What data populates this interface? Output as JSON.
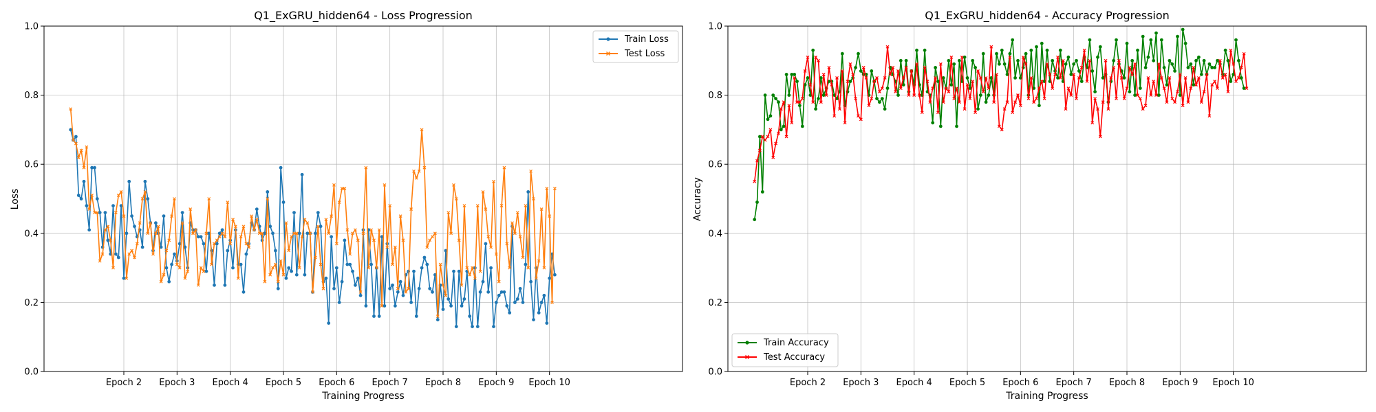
{
  "chart_data": [
    {
      "type": "line",
      "title": "Q1_ExGRU_hidden64 - Loss Progression",
      "xlabel": "Training Progress",
      "ylabel": "Loss",
      "ylim": [
        0,
        1.0
      ],
      "yticks": [
        "0.0",
        "0.2",
        "0.4",
        "0.6",
        "0.8",
        "1.0"
      ],
      "xlim": [
        -10,
        230
      ],
      "xticks": [
        {
          "x": 20,
          "label": "Epoch 2"
        },
        {
          "x": 40,
          "label": "Epoch 3"
        },
        {
          "x": 60,
          "label": "Epoch 4"
        },
        {
          "x": 80,
          "label": "Epoch 5"
        },
        {
          "x": 100,
          "label": "Epoch 6"
        },
        {
          "x": 120,
          "label": "Epoch 7"
        },
        {
          "x": 140,
          "label": "Epoch 8"
        },
        {
          "x": 160,
          "label": "Epoch 9"
        },
        {
          "x": 180,
          "label": "Epoch 10"
        }
      ],
      "grid": true,
      "legend_position": "top-right",
      "series": [
        {
          "name": "Train Loss",
          "color": "#1f77b4",
          "marker": "circle",
          "values": [
            0.7,
            0.67,
            0.68,
            0.51,
            0.5,
            0.55,
            0.48,
            0.41,
            0.59,
            0.59,
            0.5,
            0.46,
            0.36,
            0.46,
            0.38,
            0.34,
            0.48,
            0.34,
            0.33,
            0.48,
            0.27,
            0.4,
            0.55,
            0.45,
            0.42,
            0.39,
            0.41,
            0.36,
            0.55,
            0.5,
            0.43,
            0.35,
            0.43,
            0.4,
            0.36,
            0.45,
            0.3,
            0.26,
            0.31,
            0.34,
            0.32,
            0.37,
            0.46,
            0.36,
            0.3,
            0.43,
            0.41,
            0.41,
            0.39,
            0.39,
            0.37,
            0.29,
            0.4,
            0.35,
            0.25,
            0.37,
            0.4,
            0.41,
            0.25,
            0.35,
            0.38,
            0.3,
            0.41,
            0.31,
            0.31,
            0.23,
            0.34,
            0.37,
            0.43,
            0.41,
            0.47,
            0.42,
            0.38,
            0.4,
            0.52,
            0.42,
            0.4,
            0.35,
            0.24,
            0.59,
            0.49,
            0.27,
            0.3,
            0.29,
            0.46,
            0.28,
            0.4,
            0.57,
            0.28,
            0.4,
            0.4,
            0.23,
            0.4,
            0.46,
            0.42,
            0.26,
            0.27,
            0.14,
            0.39,
            0.24,
            0.3,
            0.2,
            0.26,
            0.38,
            0.31,
            0.31,
            0.29,
            0.25,
            0.27,
            0.22,
            0.41,
            0.19,
            0.41,
            0.31,
            0.16,
            0.3,
            0.16,
            0.39,
            0.19,
            0.37,
            0.24,
            0.25,
            0.19,
            0.23,
            0.26,
            0.22,
            0.28,
            0.29,
            0.2,
            0.29,
            0.16,
            0.24,
            0.3,
            0.33,
            0.31,
            0.24,
            0.23,
            0.28,
            0.15,
            0.25,
            0.18,
            0.35,
            0.21,
            0.19,
            0.29,
            0.13,
            0.29,
            0.19,
            0.21,
            0.29,
            0.16,
            0.13,
            0.3,
            0.13,
            0.23,
            0.26,
            0.37,
            0.23,
            0.3,
            0.13,
            0.2,
            0.22,
            0.23,
            0.23,
            0.19,
            0.17,
            0.42,
            0.2,
            0.21,
            0.24,
            0.2,
            0.31,
            0.52,
            0.26,
            0.15,
            0.3,
            0.17,
            0.2,
            0.22,
            0.14,
            0.27,
            0.34,
            0.28
          ]
        },
        {
          "name": "Test Loss",
          "color": "#ff7f0e",
          "marker": "x",
          "values": [
            0.76,
            0.67,
            0.66,
            0.62,
            0.64,
            0.59,
            0.65,
            0.47,
            0.51,
            0.46,
            0.46,
            0.32,
            0.34,
            0.41,
            0.42,
            0.38,
            0.3,
            0.46,
            0.51,
            0.52,
            0.45,
            0.27,
            0.34,
            0.35,
            0.33,
            0.37,
            0.43,
            0.5,
            0.52,
            0.4,
            0.43,
            0.34,
            0.4,
            0.42,
            0.26,
            0.28,
            0.35,
            0.38,
            0.45,
            0.5,
            0.31,
            0.3,
            0.43,
            0.27,
            0.29,
            0.47,
            0.4,
            0.41,
            0.25,
            0.3,
            0.29,
            0.4,
            0.5,
            0.31,
            0.37,
            0.38,
            0.39,
            0.4,
            0.39,
            0.49,
            0.37,
            0.44,
            0.42,
            0.27,
            0.39,
            0.42,
            0.37,
            0.36,
            0.45,
            0.41,
            0.44,
            0.4,
            0.4,
            0.26,
            0.5,
            0.28,
            0.3,
            0.31,
            0.26,
            0.32,
            0.28,
            0.43,
            0.35,
            0.39,
            0.4,
            0.4,
            0.3,
            0.39,
            0.44,
            0.43,
            0.4,
            0.23,
            0.33,
            0.42,
            0.31,
            0.24,
            0.44,
            0.4,
            0.45,
            0.54,
            0.37,
            0.49,
            0.53,
            0.53,
            0.41,
            0.34,
            0.4,
            0.41,
            0.38,
            0.23,
            0.4,
            0.59,
            0.3,
            0.41,
            0.38,
            0.3,
            0.41,
            0.19,
            0.54,
            0.36,
            0.48,
            0.31,
            0.36,
            0.24,
            0.45,
            0.38,
            0.23,
            0.24,
            0.47,
            0.58,
            0.56,
            0.58,
            0.7,
            0.59,
            0.36,
            0.38,
            0.39,
            0.4,
            0.16,
            0.31,
            0.25,
            0.22,
            0.46,
            0.4,
            0.54,
            0.5,
            0.38,
            0.25,
            0.48,
            0.3,
            0.28,
            0.3,
            0.27,
            0.48,
            0.29,
            0.52,
            0.47,
            0.39,
            0.36,
            0.55,
            0.34,
            0.26,
            0.48,
            0.59,
            0.37,
            0.3,
            0.43,
            0.4,
            0.46,
            0.39,
            0.33,
            0.48,
            0.3,
            0.58,
            0.5,
            0.27,
            0.32,
            0.47,
            0.3,
            0.53,
            0.45,
            0.2,
            0.53
          ]
        }
      ]
    },
    {
      "type": "line",
      "title": "Q1_ExGRU_hidden64 - Accuracy Progression",
      "xlabel": "Training Progress",
      "ylabel": "Accuracy",
      "ylim": [
        0,
        1.0
      ],
      "yticks": [
        "0.0",
        "0.2",
        "0.4",
        "0.6",
        "0.8",
        "1.0"
      ],
      "xlim": [
        -10,
        230
      ],
      "xticks": [
        {
          "x": 20,
          "label": "Epoch 2"
        },
        {
          "x": 40,
          "label": "Epoch 3"
        },
        {
          "x": 60,
          "label": "Epoch 4"
        },
        {
          "x": 80,
          "label": "Epoch 5"
        },
        {
          "x": 100,
          "label": "Epoch 6"
        },
        {
          "x": 120,
          "label": "Epoch 7"
        },
        {
          "x": 140,
          "label": "Epoch 8"
        },
        {
          "x": 160,
          "label": "Epoch 9"
        },
        {
          "x": 180,
          "label": "Epoch 10"
        }
      ],
      "grid": true,
      "legend_position": "bottom-left",
      "series": [
        {
          "name": "Train Accuracy",
          "color": "#008000",
          "marker": "circle",
          "values": [
            0.44,
            0.49,
            0.68,
            0.52,
            0.8,
            0.73,
            0.74,
            0.8,
            0.79,
            0.78,
            0.7,
            0.71,
            0.86,
            0.8,
            0.86,
            0.86,
            0.84,
            0.77,
            0.71,
            0.83,
            0.85,
            0.8,
            0.93,
            0.76,
            0.79,
            0.85,
            0.8,
            0.82,
            0.84,
            0.84,
            0.8,
            0.79,
            0.81,
            0.92,
            0.77,
            0.81,
            0.84,
            0.85,
            0.88,
            0.92,
            0.87,
            0.86,
            0.86,
            0.8,
            0.87,
            0.84,
            0.79,
            0.78,
            0.79,
            0.76,
            0.82,
            0.88,
            0.86,
            0.84,
            0.8,
            0.9,
            0.83,
            0.9,
            0.81,
            0.87,
            0.83,
            0.93,
            0.83,
            0.8,
            0.93,
            0.81,
            0.8,
            0.72,
            0.88,
            0.84,
            0.71,
            0.85,
            0.82,
            0.9,
            0.83,
            0.89,
            0.71,
            0.9,
            0.84,
            0.91,
            0.85,
            0.82,
            0.9,
            0.88,
            0.76,
            0.8,
            0.92,
            0.78,
            0.8,
            0.85,
            0.8,
            0.92,
            0.89,
            0.93,
            0.89,
            0.86,
            0.92,
            0.96,
            0.85,
            0.9,
            0.85,
            0.88,
            0.92,
            0.8,
            0.93,
            0.82,
            0.94,
            0.77,
            0.95,
            0.84,
            0.93,
            0.84,
            0.9,
            0.87,
            0.85,
            0.93,
            0.84,
            0.89,
            0.91,
            0.86,
            0.89,
            0.9,
            0.87,
            0.84,
            0.91,
            0.88,
            0.96,
            0.87,
            0.81,
            0.91,
            0.94,
            0.85,
            0.86,
            0.78,
            0.84,
            0.9,
            0.96,
            0.89,
            0.87,
            0.85,
            0.95,
            0.81,
            0.9,
            0.8,
            0.93,
            0.82,
            0.97,
            0.88,
            0.91,
            0.96,
            0.9,
            0.98,
            0.8,
            0.96,
            0.88,
            0.83,
            0.9,
            0.89,
            0.87,
            0.97,
            0.8,
            0.99,
            0.95,
            0.88,
            0.89,
            0.83,
            0.9,
            0.91,
            0.86,
            0.9,
            0.86,
            0.89,
            0.88,
            0.88,
            0.9,
            0.89,
            0.86,
            0.93,
            0.9,
            0.84,
            0.86,
            0.96,
            0.9,
            0.85,
            0.82
          ]
        },
        {
          "name": "Test Accuracy",
          "color": "#ff0000",
          "marker": "x",
          "values": [
            0.55,
            0.61,
            0.64,
            0.68,
            0.67,
            0.68,
            0.7,
            0.62,
            0.66,
            0.69,
            0.76,
            0.78,
            0.68,
            0.77,
            0.72,
            0.85,
            0.78,
            0.78,
            0.79,
            0.87,
            0.91,
            0.83,
            0.78,
            0.91,
            0.9,
            0.78,
            0.86,
            0.8,
            0.88,
            0.83,
            0.74,
            0.85,
            0.76,
            0.87,
            0.72,
            0.84,
            0.89,
            0.86,
            0.79,
            0.74,
            0.73,
            0.88,
            0.85,
            0.77,
            0.79,
            0.84,
            0.85,
            0.81,
            0.82,
            0.85,
            0.94,
            0.86,
            0.88,
            0.81,
            0.87,
            0.82,
            0.85,
            0.88,
            0.8,
            0.87,
            0.8,
            0.89,
            0.8,
            0.75,
            0.88,
            0.84,
            0.78,
            0.82,
            0.85,
            0.75,
            0.89,
            0.78,
            0.82,
            0.81,
            0.91,
            0.79,
            0.82,
            0.78,
            0.91,
            0.76,
            0.83,
            0.79,
            0.84,
            0.75,
            0.87,
            0.85,
            0.81,
            0.85,
            0.82,
            0.94,
            0.78,
            0.86,
            0.71,
            0.7,
            0.76,
            0.78,
            0.91,
            0.75,
            0.78,
            0.8,
            0.77,
            0.91,
            0.89,
            0.79,
            0.85,
            0.78,
            0.79,
            0.82,
            0.84,
            0.79,
            0.89,
            0.86,
            0.82,
            0.86,
            0.91,
            0.85,
            0.9,
            0.76,
            0.82,
            0.8,
            0.86,
            0.79,
            0.85,
            0.88,
            0.93,
            0.84,
            0.9,
            0.72,
            0.79,
            0.76,
            0.68,
            0.78,
            0.9,
            0.76,
            0.85,
            0.88,
            0.79,
            0.9,
            0.85,
            0.79,
            0.82,
            0.88,
            0.86,
            0.89,
            0.8,
            0.79,
            0.76,
            0.77,
            0.85,
            0.8,
            0.84,
            0.8,
            0.89,
            0.85,
            0.82,
            0.78,
            0.85,
            0.79,
            0.78,
            0.81,
            0.86,
            0.77,
            0.85,
            0.78,
            0.82,
            0.88,
            0.83,
            0.85,
            0.78,
            0.81,
            0.86,
            0.74,
            0.83,
            0.84,
            0.82,
            0.9,
            0.85,
            0.86,
            0.81,
            0.93,
            0.89,
            0.84,
            0.85,
            0.88,
            0.92,
            0.82
          ]
        }
      ]
    }
  ]
}
